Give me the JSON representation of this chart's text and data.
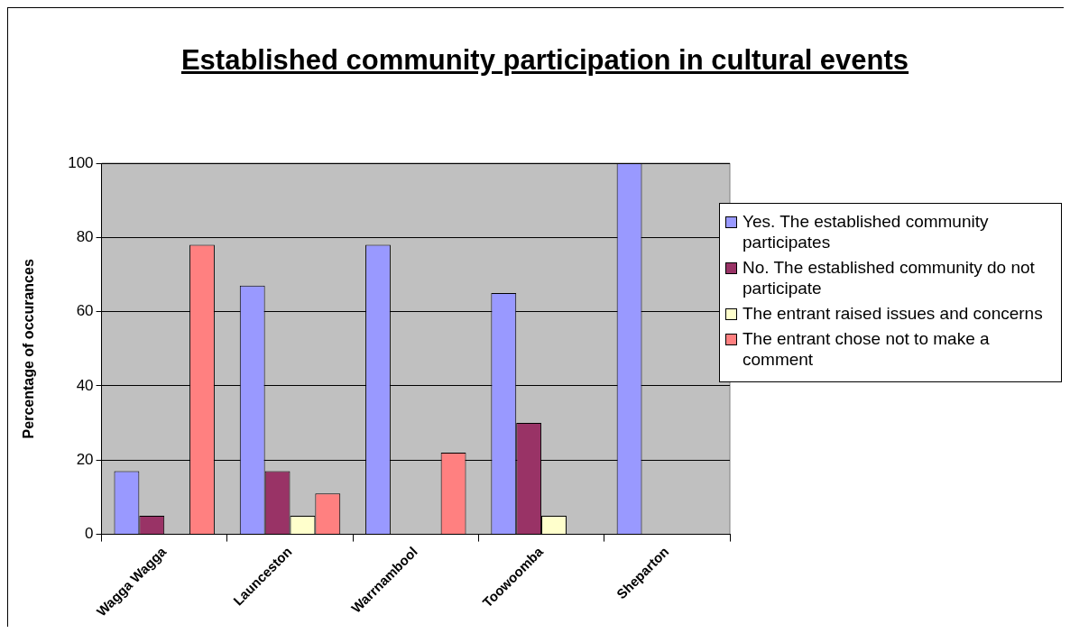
{
  "chart_data": {
    "type": "bar",
    "title": "Established community participation in cultural events",
    "ylabel": "Percentage of occurances",
    "categories": [
      "Wagga Wagga",
      "Launceston",
      "Warrnambool",
      "Toowoomba",
      "Sheparton"
    ],
    "series": [
      {
        "name": "Yes. The established community participates",
        "color": "#9999ff",
        "values": [
          17,
          67,
          78,
          65,
          100
        ]
      },
      {
        "name": "No. The established community do not participate",
        "color": "#993366",
        "values": [
          5,
          17,
          0,
          30,
          0
        ]
      },
      {
        "name": "The entrant raised issues and concerns",
        "color": "#ffffcc",
        "values": [
          0,
          5,
          0,
          5,
          0
        ]
      },
      {
        "name": "The entrant chose not to make a comment",
        "color": "#ff8080",
        "values": [
          78,
          11,
          22,
          0,
          0
        ]
      }
    ],
    "ylim": [
      0,
      100
    ],
    "yticks": [
      0,
      20,
      40,
      60,
      80,
      100
    ],
    "grid": "y",
    "legend": "right"
  }
}
